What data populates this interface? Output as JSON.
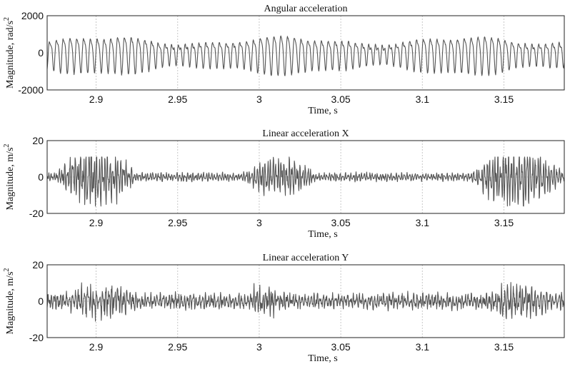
{
  "chart_data": [
    {
      "type": "line",
      "title": "Angular acceleration",
      "xlabel": "Time, s",
      "ylabel": "Magnitude, rad/s",
      "ylabel_sup": "2",
      "xlim": [
        2.87,
        3.187
      ],
      "ylim": [
        -2000,
        2000
      ],
      "xticks": [
        2.9,
        2.95,
        3,
        3.05,
        3.1,
        3.15
      ],
      "xtick_labels": [
        "2.9",
        "2.95",
        "3",
        "3.05",
        "3.1",
        "3.15"
      ],
      "yticks": [
        -2000,
        0,
        2000
      ],
      "ytick_labels": [
        "-2000",
        "0",
        "2000"
      ],
      "grid": true,
      "signal_description": "oscillation ~240 Hz, amplitude ~1000-1300 rad/s2"
    },
    {
      "type": "line",
      "title": "Linear acceleration X",
      "xlabel": "Time, s",
      "ylabel": "Magnitude, m/s",
      "ylabel_sup": "2",
      "xlim": [
        2.87,
        3.187
      ],
      "ylim": [
        -20,
        20
      ],
      "xticks": [
        2.9,
        2.95,
        3,
        3.05,
        3.1,
        3.15
      ],
      "xtick_labels": [
        "2.9",
        "2.95",
        "3",
        "3.05",
        "3.1",
        "3.15"
      ],
      "yticks": [
        -20,
        0,
        20
      ],
      "ytick_labels": [
        "-20",
        "0",
        "20"
      ],
      "grid": true,
      "signal_description": "bursts up to ~±15 m/s2 near 2.88-2.92, 2.99-3.03, 3.13-3.18"
    },
    {
      "type": "line",
      "title": "Linear acceleration Y",
      "xlabel": "Time, s",
      "ylabel": "Magnitude, m/s",
      "ylabel_sup": "2",
      "xlim": [
        2.87,
        3.187
      ],
      "ylim": [
        -20,
        20
      ],
      "xticks": [
        2.9,
        2.95,
        3,
        3.05,
        3.1,
        3.15
      ],
      "xtick_labels": [
        "2.9",
        "2.95",
        "3",
        "3.05",
        "3.1",
        "3.15"
      ],
      "yticks": [
        -20,
        0,
        20
      ],
      "ytick_labels": [
        "-20",
        "0",
        "20"
      ],
      "grid": true,
      "signal_description": "noise ~±5 m/s2 with bursts up to ~±10 m/s2"
    }
  ]
}
